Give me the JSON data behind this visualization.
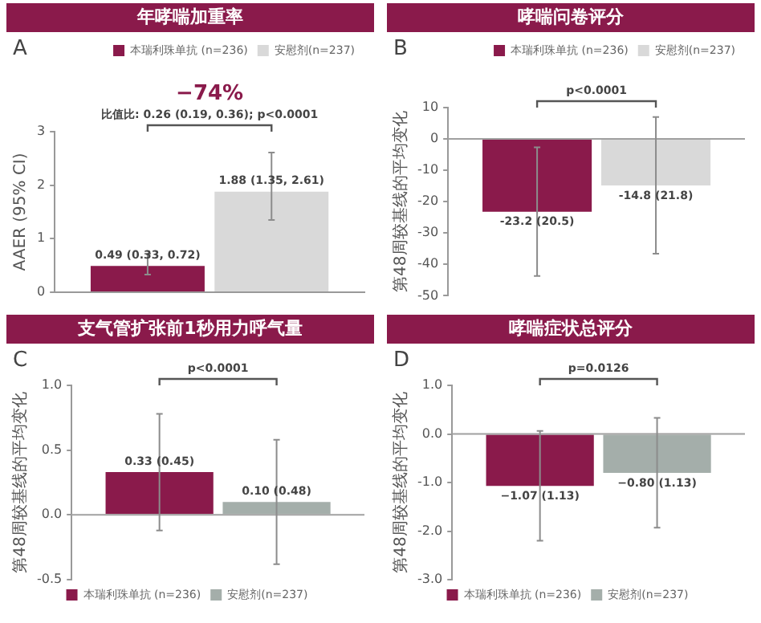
{
  "chart_data": [
    {
      "type": "bar",
      "title": "年哮喘加重率",
      "ylabel": "AAER (95% CI)",
      "categories": [
        null
      ],
      "legend": "top right",
      "annotations": [
        "A",
        "−74%",
        "比值比: 0.26 (0.19, 0.36); p<0.0001"
      ],
      "ylim": [
        0,
        3
      ],
      "yticks": [
        0,
        1,
        2,
        3
      ],
      "series": [
        {
          "name": "本瑞利珠单抗 (n=236)",
          "color": "#8a1a4b",
          "values": [
            0.49
          ],
          "errors": [
            [
              0.33,
              0.72
            ]
          ],
          "value_labels": [
            "0.49 (0.33, 0.72)"
          ]
        },
        {
          "name": "安慰剂(n=237)",
          "color": "#d9d9d9",
          "values": [
            1.88
          ],
          "errors": [
            [
              1.35,
              2.61
            ]
          ],
          "value_labels": [
            "1.88 (1.35, 2.61)"
          ]
        }
      ]
    },
    {
      "type": "bar",
      "title": "哮喘问卷评分",
      "ylabel": "第48周较基线的平均变化",
      "categories": [
        null
      ],
      "legend": "top right",
      "annotations": [
        "B",
        "p<0.0001"
      ],
      "ylim": [
        -50,
        10
      ],
      "yticks": [
        -50,
        -40,
        -30,
        -20,
        -10,
        0,
        10
      ],
      "ref_lines": [
        {
          "axis": "y",
          "value": 0,
          "color": "#a0a0a0"
        }
      ],
      "series": [
        {
          "name": "本瑞利珠单抗 (n=236)",
          "color": "#8a1a4b",
          "values": [
            -23.2
          ],
          "errors": [
            20.5
          ],
          "value_labels": [
            "-23.2 (20.5)"
          ]
        },
        {
          "name": "安慰剂(n=237)",
          "color": "#d9d9d9",
          "values": [
            -14.8
          ],
          "errors": [
            21.8
          ],
          "value_labels": [
            "-14.8 (21.8)"
          ]
        }
      ]
    },
    {
      "type": "bar",
      "title": "支气管扩张前1秒用力呼气量",
      "ylabel": "第48周较基线的平均变化",
      "categories": [
        null
      ],
      "legend": "bottom",
      "annotations": [
        "C",
        "p<0.0001"
      ],
      "ylim": [
        -0.5,
        1
      ],
      "yticks": [
        {
          "value": -0.5,
          "label": "-0.5"
        },
        {
          "value": 0,
          "label": "0.0"
        },
        {
          "value": 0.5,
          "label": "0.5"
        },
        {
          "value": 1,
          "label": "1.0"
        }
      ],
      "ref_lines": [
        {
          "axis": "y",
          "value": 0,
          "color": "#a0a0a0"
        }
      ],
      "series": [
        {
          "name": "本瑞利珠单抗 (n=236)",
          "color": "#8a1a4b",
          "values": [
            0.33
          ],
          "errors": [
            0.45
          ],
          "value_labels": [
            "0.33 (0.45)"
          ]
        },
        {
          "name": "安慰剂(n=237)",
          "color": "#a4aeaa",
          "values": [
            0.1
          ],
          "errors": [
            0.48
          ],
          "value_labels": [
            "0.10 (0.48)"
          ]
        }
      ]
    },
    {
      "type": "bar",
      "title": "哮喘症状总评分",
      "ylabel": "第48周较基线的平均变化",
      "categories": [
        null
      ],
      "legend": "bottom",
      "annotations": [
        "D",
        "p=0.0126"
      ],
      "ylim": [
        -3,
        1
      ],
      "yticks": [
        {
          "value": -3,
          "label": "-3.0"
        },
        {
          "value": -2,
          "label": "-2.0"
        },
        {
          "value": -1,
          "label": "-1.0"
        },
        {
          "value": 0,
          "label": "0.0"
        },
        {
          "value": 1,
          "label": "1.0"
        }
      ],
      "ref_lines": [
        {
          "axis": "y",
          "value": 0,
          "color": "#a0a0a0"
        }
      ],
      "series": [
        {
          "name": "本瑞利珠单抗 (n=236)",
          "color": "#8a1a4b",
          "values": [
            -1.07
          ],
          "errors": [
            1.13
          ],
          "value_labels": [
            "−1.07 (1.13)"
          ]
        },
        {
          "name": "安慰剂(n=237)",
          "color": "#a4aeaa",
          "values": [
            -0.8
          ],
          "errors": [
            1.13
          ],
          "value_labels": [
            "−0.80 (1.13)"
          ]
        }
      ]
    }
  ]
}
